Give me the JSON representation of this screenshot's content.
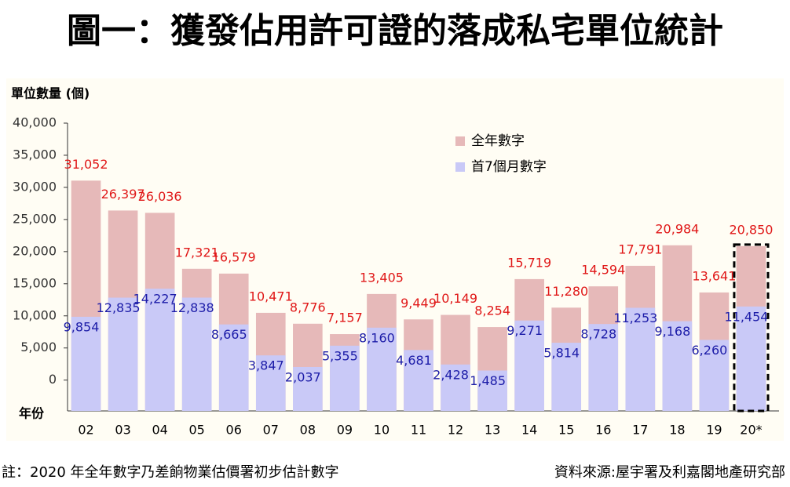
{
  "chart_data": {
    "type": "overlay-bar",
    "title": "圖一：獲發佔用許可證的落成私宅單位統計",
    "y_label": "單位數量 (個)",
    "x_label": "年份",
    "categories": [
      "02",
      "03",
      "04",
      "05",
      "06",
      "07",
      "08",
      "09",
      "10",
      "11",
      "12",
      "13",
      "14",
      "15",
      "16",
      "17",
      "18",
      "19",
      "20*"
    ],
    "series": [
      {
        "name": "全年數字",
        "color": "#e6b9b9",
        "label_color": "#e01818",
        "values": [
          31052,
          26397,
          26036,
          17321,
          16579,
          10471,
          8776,
          7157,
          13405,
          9449,
          10149,
          8254,
          15719,
          11280,
          14594,
          17791,
          20984,
          13641,
          20850
        ],
        "value_labels": [
          "31,052",
          "26,397",
          "26,036",
          "17,321",
          "16,579",
          "10,471",
          "8,776",
          "7,157",
          "13,405",
          "9,449",
          "10,149",
          "8,254",
          "15,719",
          "11,280",
          "14,594",
          "17,791",
          "20,984",
          "13,641",
          "20,850"
        ]
      },
      {
        "name": "首7個月數字",
        "color": "#c9c9f7",
        "label_color": "#1c1ca8",
        "values": [
          9854,
          12835,
          14227,
          12838,
          8665,
          3847,
          2037,
          5355,
          8160,
          4681,
          2428,
          1485,
          9271,
          5814,
          8728,
          11253,
          9168,
          6260,
          11454
        ],
        "value_labels": [
          "9,854",
          "12,835",
          "14,227",
          "12,838",
          "8,665",
          "3,847",
          "2,037",
          "5,355",
          "8,160",
          "4,681",
          "2,428",
          "1,485",
          "9,271",
          "5,814",
          "8,728",
          "11,253",
          "9,168",
          "6,260",
          "11,454"
        ]
      }
    ],
    "ylim": [
      -4800,
      40000
    ],
    "yticks": [
      0,
      {
        "value": 5000,
        "label": "5,000"
      },
      {
        "value": 10000,
        "label": "10,000"
      },
      {
        "value": 15000,
        "label": "15,000"
      },
      {
        "value": 20000,
        "label": "20,000"
      },
      {
        "value": 25000,
        "label": "25,000"
      },
      {
        "value": 30000,
        "label": "30,000"
      },
      {
        "value": 35000,
        "label": "35,000"
      },
      {
        "value": 40000,
        "label": "40,000"
      }
    ],
    "grid": false,
    "legend": "upper-center",
    "footnote": "註：2020 年全年數字乃差餉物業估價署初步估計數字",
    "source": "資料來源:屋宇署及利嘉閣地產研究部"
  }
}
